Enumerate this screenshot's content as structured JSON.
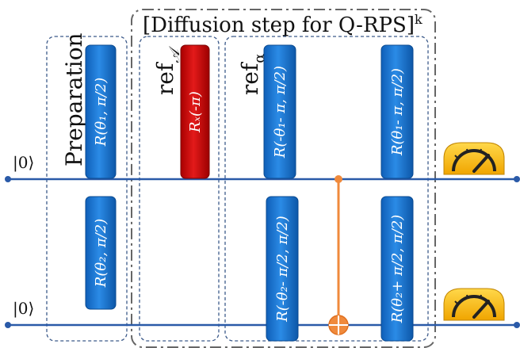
{
  "title": "[Diffusion step for Q-RPS]",
  "title_sup": "k",
  "sections": {
    "preparation": "Preparation",
    "ref_a_base": "ref",
    "ref_a_sub": "𝒜",
    "ref_alpha_base": "ref",
    "ref_alpha_sub": "α"
  },
  "qubits": [
    {
      "label": "|0⟩"
    },
    {
      "label": "|0⟩"
    }
  ],
  "gates": {
    "prep_q1": "R(θ₁, π/2)",
    "prep_q2": "R(θ₂, π/2)",
    "refA_q1": "Rₓ(-π)",
    "refalpha1_q1": "R(-θ₁- π, π/2)",
    "refalpha2_q1": "R(θ₁- π, π/2)",
    "refalpha1_q2": "R(-θ₂- π/2, π/2)",
    "refalpha2_q2": "R(θ₂+ π/2, π/2)"
  },
  "colors": {
    "wire": "#2a5aa8",
    "gate_blue": "#1f78d1",
    "gate_red": "#d01010",
    "cnot": "#f08a3c",
    "meter": "#f5b400"
  },
  "icons": [
    "speedometer-icon",
    "speedometer-icon"
  ]
}
